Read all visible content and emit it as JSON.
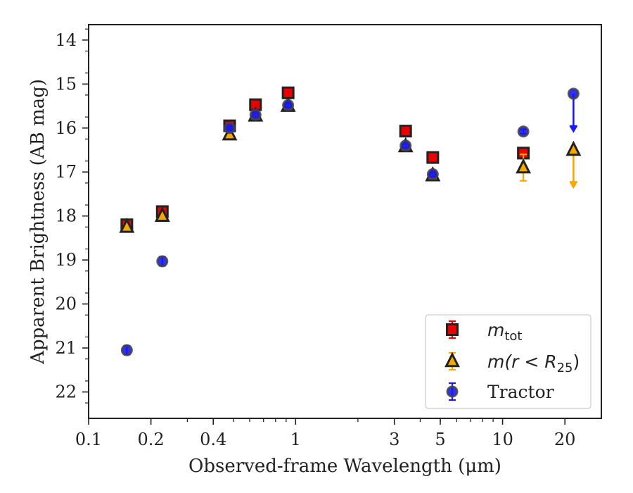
{
  "chart_data": {
    "type": "scatter",
    "xlabel": "Observed-frame Wavelength (μm)",
    "ylabel": "Apparent Brightness (AB mag)",
    "xscale": "log",
    "xlim": [
      0.1,
      30
    ],
    "ylim": [
      22.6,
      13.65
    ],
    "y_inverted": true,
    "grid": false,
    "legend_position": "lower-right",
    "x_ticks": [
      0.1,
      0.2,
      0.4,
      1,
      3,
      5,
      10,
      20
    ],
    "x_tick_labels": [
      "0.1",
      "0.2",
      "0.4",
      "1",
      "3",
      "5",
      "10",
      "20"
    ],
    "y_ticks": [
      14,
      15,
      16,
      17,
      18,
      19,
      20,
      21,
      22
    ],
    "y_tick_labels": [
      "14",
      "15",
      "16",
      "17",
      "18",
      "19",
      "20",
      "21",
      "22"
    ],
    "series": [
      {
        "name": "m_tot",
        "legend_label": {
          "main": "m",
          "sub": "tot",
          "suffix": ""
        },
        "marker": "square",
        "color": "#ee0000",
        "points": [
          {
            "x": 0.153,
            "y": 18.2,
            "err": 0.1
          },
          {
            "x": 0.227,
            "y": 17.9,
            "err": 0.1
          },
          {
            "x": 0.48,
            "y": 15.95,
            "err": 0.05
          },
          {
            "x": 0.64,
            "y": 15.47,
            "err": 0.05
          },
          {
            "x": 0.92,
            "y": 15.2,
            "err": 0.05
          },
          {
            "x": 3.4,
            "y": 16.07,
            "err": 0.05
          },
          {
            "x": 4.6,
            "y": 16.67,
            "err": 0.05
          },
          {
            "x": 12.6,
            "y": 16.57,
            "err": 0.05
          }
        ]
      },
      {
        "name": "m(r < R25)",
        "legend_label": {
          "main": "m(r < R",
          "sub": "25",
          "suffix": ")"
        },
        "marker": "triangle",
        "color": "#f5a800",
        "points": [
          {
            "x": 0.153,
            "y": 18.25,
            "err": 0.05
          },
          {
            "x": 0.227,
            "y": 18.0,
            "err": 0.05
          },
          {
            "x": 0.48,
            "y": 16.15,
            "err": 0.05
          },
          {
            "x": 0.64,
            "y": 15.72,
            "err": 0.05
          },
          {
            "x": 0.92,
            "y": 15.5,
            "err": 0.05
          },
          {
            "x": 3.4,
            "y": 16.42,
            "err": 0.05
          },
          {
            "x": 4.6,
            "y": 17.08,
            "err": 0.05
          },
          {
            "x": 12.6,
            "y": 16.9,
            "err": 0.3
          },
          {
            "x": 22.0,
            "y": 16.5,
            "upper_limit_to": 17.35
          }
        ]
      },
      {
        "name": "Tractor",
        "legend_label": {
          "main": "Tractor",
          "sub": "",
          "suffix": ""
        },
        "marker": "circle",
        "color": "#1a1aee",
        "points": [
          {
            "x": 0.153,
            "y": 21.05,
            "err": 0.1
          },
          {
            "x": 0.227,
            "y": 19.03,
            "err": 0.1
          },
          {
            "x": 0.48,
            "y": 16.0,
            "err": 0.05
          },
          {
            "x": 0.64,
            "y": 15.7,
            "err": 0.05
          },
          {
            "x": 0.92,
            "y": 15.48,
            "err": 0.05
          },
          {
            "x": 3.4,
            "y": 16.4,
            "err": 0.05
          },
          {
            "x": 4.6,
            "y": 17.05,
            "err": 0.05
          },
          {
            "x": 12.6,
            "y": 16.08,
            "err": 0.05
          },
          {
            "x": 22.0,
            "y": 15.22,
            "upper_limit_to": 16.08
          }
        ]
      }
    ]
  }
}
